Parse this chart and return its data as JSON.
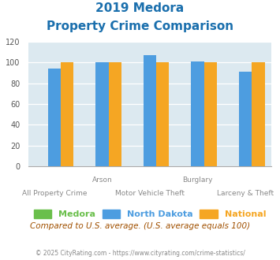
{
  "title_line1": "2019 Medora",
  "title_line2": "Property Crime Comparison",
  "title_color": "#1a6fad",
  "categories": [
    "All Property Crime",
    "Arson",
    "Motor Vehicle Theft",
    "Burglary",
    "Larceny & Theft"
  ],
  "x_labels_top": [
    "",
    "Arson",
    "",
    "Burglary",
    ""
  ],
  "x_labels_bottom": [
    "All Property Crime",
    "",
    "Motor Vehicle Theft",
    "",
    "Larceny & Theft"
  ],
  "medora_values": [
    0,
    0,
    0,
    0,
    0
  ],
  "nd_values": [
    94,
    100,
    107,
    101,
    91
  ],
  "national_values": [
    100,
    100,
    100,
    100,
    100
  ],
  "medora_color": "#6abf4b",
  "nd_color": "#4d9de0",
  "national_color": "#f5a623",
  "ylim": [
    0,
    120
  ],
  "yticks": [
    0,
    20,
    40,
    60,
    80,
    100,
    120
  ],
  "background_color": "#dce9f0",
  "legend_labels": [
    "Medora",
    "North Dakota",
    "National"
  ],
  "footer_text": "Compared to U.S. average. (U.S. average equals 100)",
  "copyright_text": "© 2025 CityRating.com - https://www.cityrating.com/crime-statistics/",
  "footer_color": "#a05000",
  "copyright_color": "#888888"
}
